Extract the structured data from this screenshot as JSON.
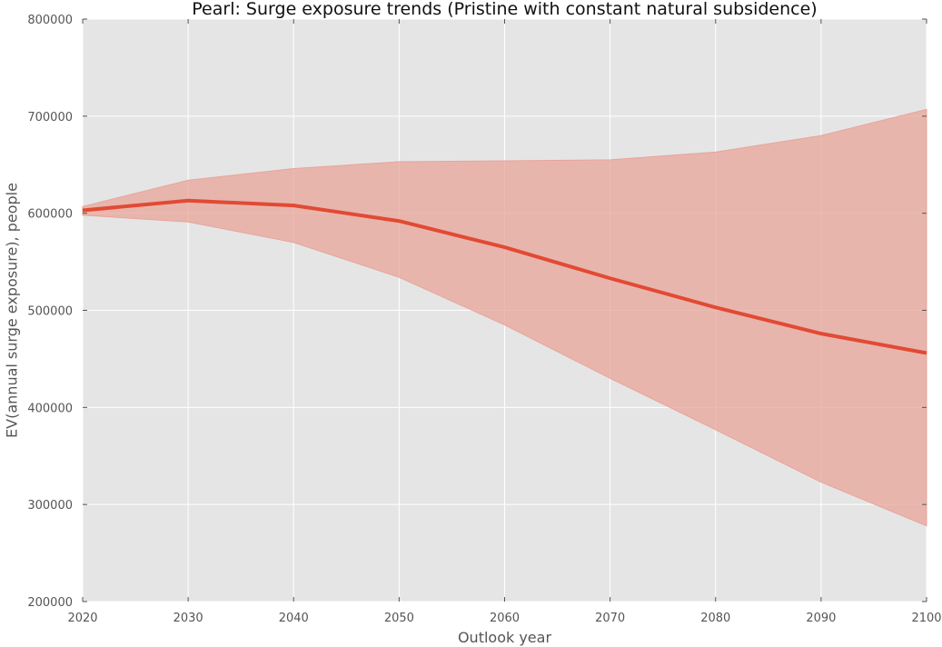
{
  "chart_data": {
    "type": "line",
    "title": "Pearl: Surge exposure trends (Pristine with constant natural subsidence)",
    "xlabel": "Outlook year",
    "ylabel": "EV(annual surge exposure), people",
    "xlim": [
      2020,
      2100
    ],
    "ylim": [
      200000,
      800000
    ],
    "x_ticks": [
      "2020",
      "2030",
      "2040",
      "2050",
      "2060",
      "2070",
      "2080",
      "2090",
      "2100"
    ],
    "y_ticks": [
      "200000",
      "300000",
      "400000",
      "500000",
      "600000",
      "700000",
      "800000"
    ],
    "grid": true,
    "x": [
      2020,
      2030,
      2040,
      2050,
      2060,
      2070,
      2080,
      2090,
      2100
    ],
    "series": [
      {
        "values": [
          603000,
          613000,
          608000,
          592000,
          565000,
          533000,
          503000,
          476000,
          456000
        ],
        "upper": [
          607000,
          634000,
          646000,
          653000,
          654000,
          655000,
          663000,
          680000,
          707000
        ],
        "lower": [
          598000,
          591000,
          570000,
          534000,
          485000,
          430000,
          377000,
          323000,
          278000
        ],
        "color": "#e24a33",
        "band_color": "#e8a49a"
      }
    ],
    "background": "#e5e5e5",
    "grid_color": "#ffffff"
  }
}
